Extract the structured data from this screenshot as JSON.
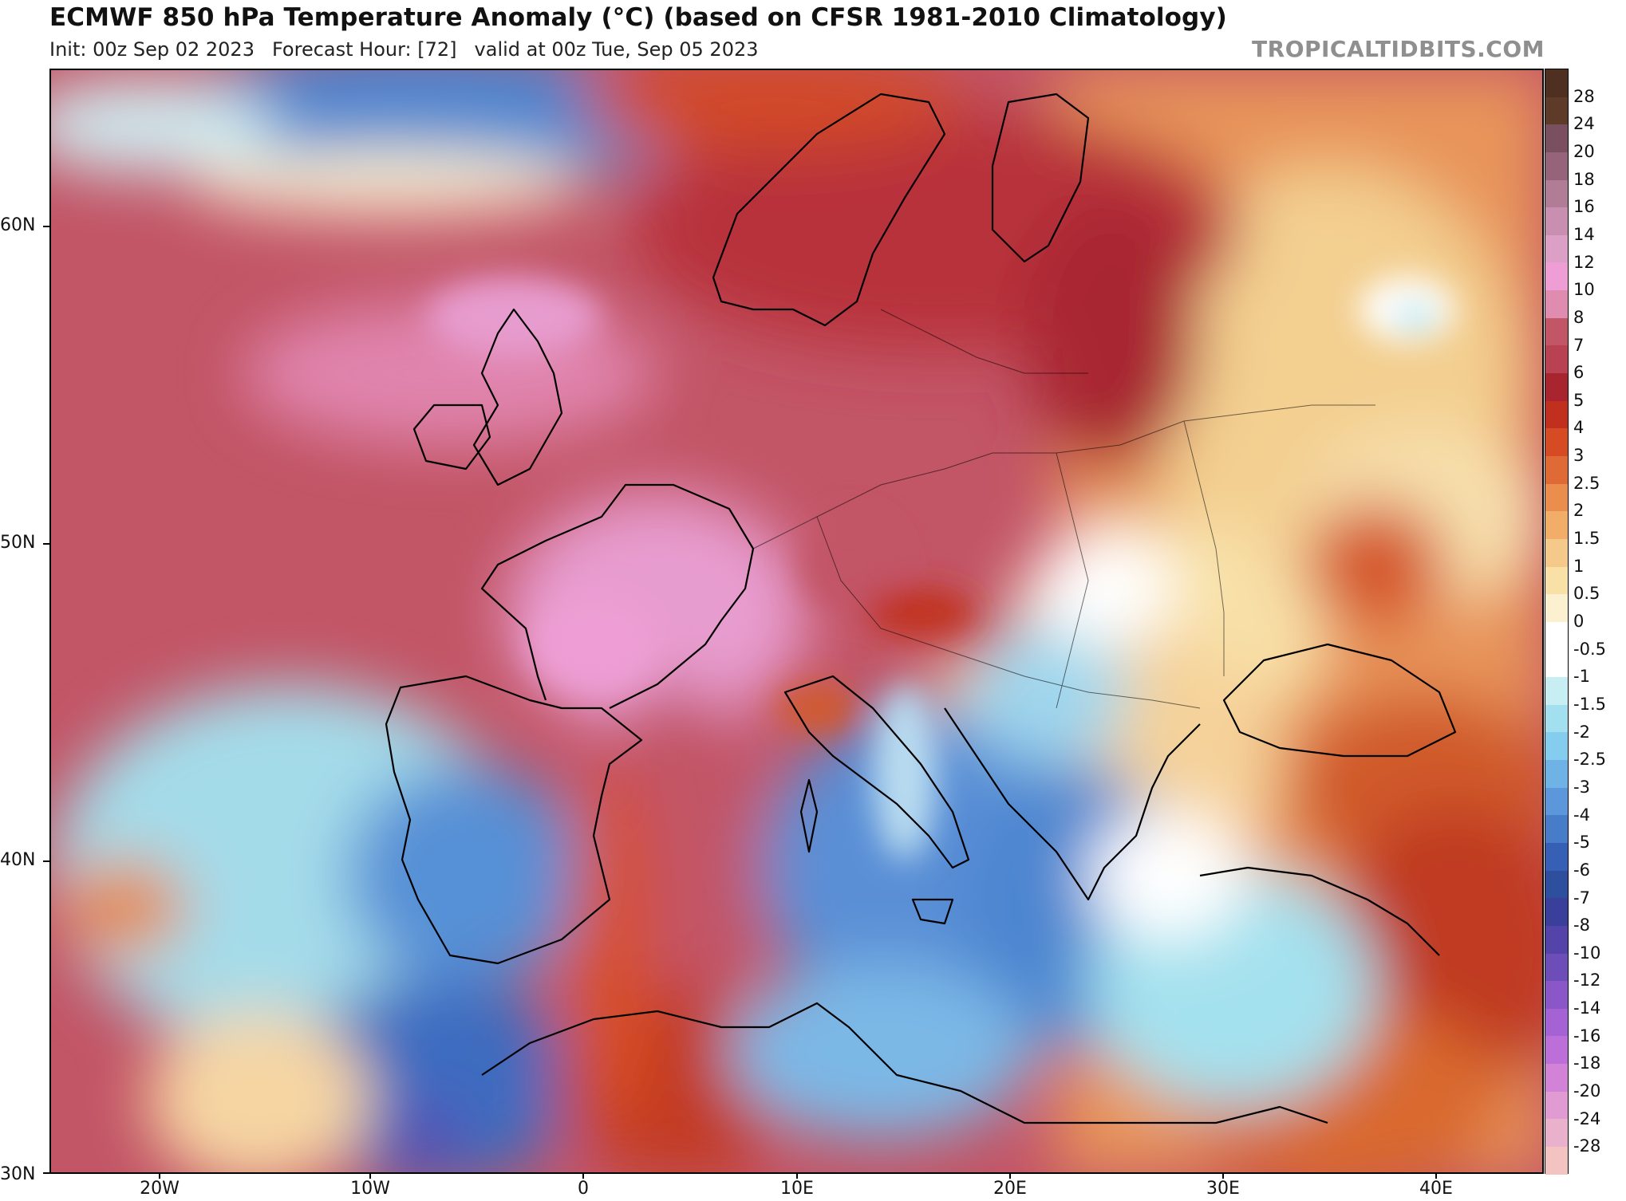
{
  "header": {
    "title": "ECMWF 850 hPa Temperature Anomaly (°C) (based on CFSR 1981-2010 Climatology)",
    "init": "Init: 00z Sep 02 2023",
    "forecast_hour": "Forecast Hour: [72]",
    "valid": "valid at 00z Tue, Sep 05 2023",
    "site": "TROPICALTIDBITS.COM"
  },
  "map": {
    "lat_labels": [
      "60N",
      "50N",
      "40N",
      "30N"
    ],
    "lon_labels": [
      "20W",
      "10W",
      "0",
      "10E",
      "20E",
      "30E",
      "40E"
    ],
    "colors": {
      "land_border": "#000000",
      "ocean_base": "#c25566"
    }
  },
  "colorbar": {
    "labels": [
      "28",
      "24",
      "20",
      "18",
      "16",
      "14",
      "12",
      "10",
      "8",
      "7",
      "6",
      "5",
      "4",
      "3",
      "2.5",
      "2",
      "1.5",
      "1",
      "0.5",
      "0",
      "-0.5",
      "-1",
      "-1.5",
      "-2",
      "-2.5",
      "-3",
      "-4",
      "-5",
      "-6",
      "-7",
      "-8",
      "-10",
      "-12",
      "-14",
      "-16",
      "-18",
      "-20",
      "-24",
      "-28"
    ],
    "colors": [
      "#5e3b29",
      "#7a5060",
      "#95647a",
      "#b17c96",
      "#c98fb1",
      "#dca0c6",
      "#ee9ed4",
      "#e08bb0",
      "#c25566",
      "#b84152",
      "#a82530",
      "#c1301f",
      "#d64a24",
      "#e06a36",
      "#eb8d4d",
      "#f2ad68",
      "#f5c98a",
      "#f8e0a7",
      "#fbf0cf",
      "#ffffff",
      "#ffffff",
      "#c7eef2",
      "#a2e0ef",
      "#85cdee",
      "#6fb2e6",
      "#5b97da",
      "#477cc9",
      "#3660b5",
      "#2e4e9e",
      "#3b3f9c",
      "#5443a9",
      "#6d4db8",
      "#8b57c8",
      "#a562d4",
      "#bd6fd9",
      "#d283d8",
      "#df9bd2",
      "#e9b1cc",
      "#f2c3c0"
    ]
  }
}
